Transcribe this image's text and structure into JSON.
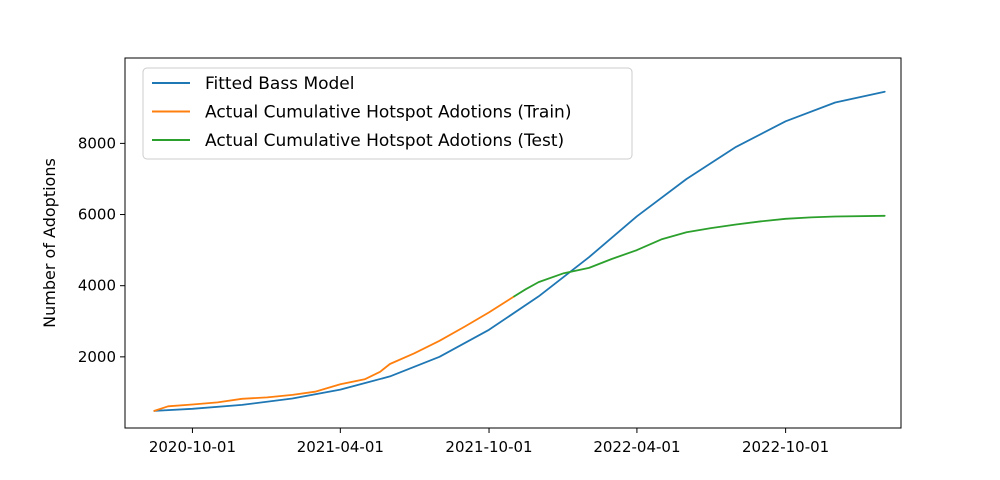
{
  "chart_data": {
    "type": "line",
    "title": "",
    "xlabel": "",
    "ylabel": "Number of Adoptions",
    "x_ticks": [
      "2020-10-01",
      "2021-04-01",
      "2021-10-01",
      "2022-04-01",
      "2022-10-01"
    ],
    "y_ticks": [
      2000,
      4000,
      6000,
      8000
    ],
    "xlim": [
      "2020-07-10",
      "2023-02-20"
    ],
    "ylim": [
      0,
      10400
    ],
    "grid": false,
    "legend_position": "top-left",
    "series": [
      {
        "name": "Fitted Bass Model",
        "color": "#1f77b4",
        "points": [
          [
            "2020-08-15",
            480
          ],
          [
            "2020-10-01",
            540
          ],
          [
            "2020-12-01",
            650
          ],
          [
            "2021-02-01",
            830
          ],
          [
            "2021-04-01",
            1080
          ],
          [
            "2021-06-01",
            1450
          ],
          [
            "2021-08-01",
            2000
          ],
          [
            "2021-10-01",
            2760
          ],
          [
            "2021-12-01",
            3700
          ],
          [
            "2022-02-01",
            4800
          ],
          [
            "2022-04-01",
            5950
          ],
          [
            "2022-06-01",
            7000
          ],
          [
            "2022-08-01",
            7900
          ],
          [
            "2022-10-01",
            8620
          ],
          [
            "2022-12-01",
            9150
          ],
          [
            "2023-01-31",
            9450
          ]
        ]
      },
      {
        "name": "Actual Cumulative Hotspot Adotions (Train)",
        "color": "#ff7f0e",
        "points": [
          [
            "2020-08-15",
            480
          ],
          [
            "2020-09-01",
            610
          ],
          [
            "2020-10-01",
            660
          ],
          [
            "2020-11-01",
            720
          ],
          [
            "2020-12-01",
            820
          ],
          [
            "2021-01-01",
            860
          ],
          [
            "2021-02-01",
            930
          ],
          [
            "2021-03-01",
            1020
          ],
          [
            "2021-04-01",
            1230
          ],
          [
            "2021-05-01",
            1370
          ],
          [
            "2021-05-20",
            1580
          ],
          [
            "2021-06-01",
            1800
          ],
          [
            "2021-07-01",
            2100
          ],
          [
            "2021-08-01",
            2450
          ],
          [
            "2021-09-01",
            2850
          ],
          [
            "2021-10-01",
            3250
          ],
          [
            "2021-11-01",
            3700
          ]
        ]
      },
      {
        "name": "Actual Cumulative Hotspot Adotions (Test)",
        "color": "#2ca02c",
        "points": [
          [
            "2021-11-01",
            3700
          ],
          [
            "2021-11-15",
            3900
          ],
          [
            "2021-12-01",
            4100
          ],
          [
            "2022-01-01",
            4350
          ],
          [
            "2022-02-01",
            4500
          ],
          [
            "2022-03-01",
            4750
          ],
          [
            "2022-04-01",
            5000
          ],
          [
            "2022-05-01",
            5300
          ],
          [
            "2022-06-01",
            5500
          ],
          [
            "2022-07-01",
            5620
          ],
          [
            "2022-08-01",
            5720
          ],
          [
            "2022-09-01",
            5810
          ],
          [
            "2022-10-01",
            5880
          ],
          [
            "2022-11-01",
            5920
          ],
          [
            "2022-12-01",
            5945
          ],
          [
            "2023-01-31",
            5965
          ]
        ]
      }
    ]
  }
}
